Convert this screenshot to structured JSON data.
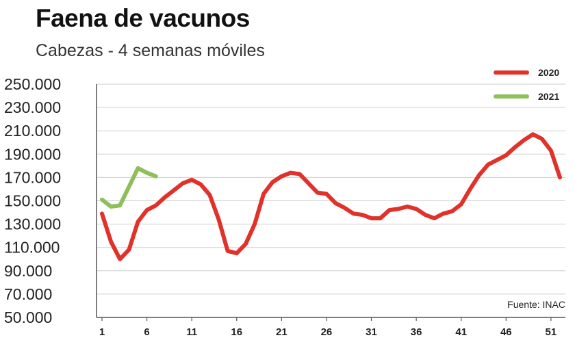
{
  "chart_data": {
    "type": "line",
    "title": "Faena de vacunos",
    "subtitle": "Cabezas - 4 semanas móviles",
    "source": "Fuente: INAC",
    "ylim": [
      50000,
      250000
    ],
    "yticks": [
      "250.000",
      "230.000",
      "210.000",
      "190.000",
      "170.000",
      "150.000",
      "130.000",
      "110.000",
      "90.000",
      "70.000",
      "50.000"
    ],
    "ytick_values": [
      250000,
      230000,
      210000,
      190000,
      170000,
      150000,
      130000,
      110000,
      90000,
      70000,
      50000
    ],
    "xlim": [
      1,
      52
    ],
    "xticks": [
      "1",
      "6",
      "11",
      "16",
      "21",
      "26",
      "31",
      "36",
      "41",
      "46",
      "51"
    ],
    "xtick_values": [
      1,
      6,
      11,
      16,
      21,
      26,
      31,
      36,
      41,
      46,
      51
    ],
    "grid": true,
    "legend": "top-right",
    "series": [
      {
        "name": "2020",
        "color": "#e0322a",
        "x": [
          1,
          2,
          3,
          4,
          5,
          6,
          7,
          8,
          9,
          10,
          11,
          12,
          13,
          14,
          15,
          16,
          17,
          18,
          19,
          20,
          21,
          22,
          23,
          24,
          25,
          26,
          27,
          28,
          29,
          30,
          31,
          32,
          33,
          34,
          35,
          36,
          37,
          38,
          39,
          40,
          41,
          42,
          43,
          44,
          45,
          46,
          47,
          48,
          49,
          50,
          51,
          52
        ],
        "values": [
          139000,
          115000,
          100000,
          108000,
          132000,
          142000,
          146000,
          153000,
          159000,
          165000,
          168000,
          164000,
          155000,
          134000,
          107000,
          105000,
          113000,
          130000,
          156000,
          166000,
          171000,
          174000,
          173000,
          165000,
          157000,
          156000,
          148000,
          144000,
          139000,
          138000,
          135000,
          135000,
          142000,
          143000,
          145000,
          143000,
          138000,
          135000,
          139000,
          141000,
          147000,
          160000,
          172000,
          181000,
          185000,
          189000,
          196000,
          202000,
          207000,
          203000,
          193000,
          170000
        ]
      },
      {
        "name": "2021",
        "color": "#8ebf5a",
        "x": [
          1,
          2,
          3,
          4,
          5,
          6,
          7
        ],
        "values": [
          151000,
          145000,
          146000,
          162000,
          178000,
          174000,
          171000
        ]
      }
    ]
  }
}
